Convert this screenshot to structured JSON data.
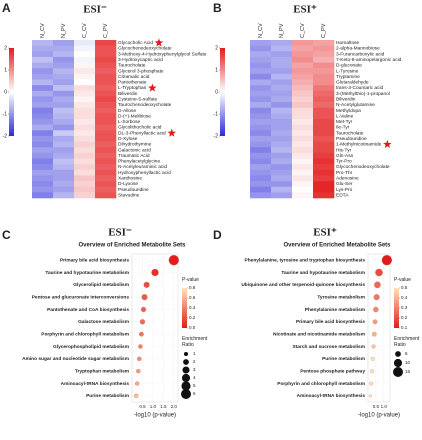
{
  "chart_data": [
    {
      "type": "heatmap",
      "panel_label": "A",
      "title": "ESI⁻",
      "columns": [
        "N_CV",
        "N_PV",
        "C_CV",
        "C_PV"
      ],
      "rows": [
        "Glycocholic Acid",
        "Glycochenodeoxycholate",
        "3-Methoxy-4-Hydroxyphenylglycol Sulfate",
        "3-Hydroxycapric acid",
        "Taurocholate",
        "Glycerol 3-phosphate",
        "Citramalic acid",
        "Pantothenate",
        "L-Tryptophan",
        "Biliverdin",
        "Cysteine-S-sulfate",
        "Taurochenodeoxycholate",
        "D-Allose",
        "D-(+)-Melibiose",
        "L-Sorbose",
        "Glycolithocholic acid",
        "DL-3-Phenyllactic acid",
        "D-Xylose",
        "Dihydrothymine",
        "Galactonic acid",
        "Traumatic Acid",
        "Phenylacetylglycine",
        "N-Acetyleuraminic acid",
        "Hydroxyphenyllactic acid",
        "Xanthosine",
        "D-Lyxose",
        "Pseudouridine",
        "Stavudine"
      ],
      "values": [
        [
          -0.7,
          -0.9,
          -0.2,
          1.6
        ],
        [
          -0.8,
          -0.8,
          -0.1,
          1.5
        ],
        [
          -0.9,
          -0.7,
          0.0,
          1.5
        ],
        [
          -0.6,
          -1.0,
          -0.1,
          1.6
        ],
        [
          -0.8,
          -0.9,
          0.1,
          1.5
        ],
        [
          -1.0,
          -0.7,
          0.2,
          1.4
        ],
        [
          -0.9,
          -0.8,
          0.1,
          1.5
        ],
        [
          -0.7,
          -0.9,
          0.0,
          1.5
        ],
        [
          -1.1,
          -0.6,
          0.3,
          1.4
        ],
        [
          -0.8,
          -1.0,
          0.2,
          1.5
        ],
        [
          -1.0,
          -0.8,
          0.1,
          1.6
        ],
        [
          -0.9,
          -0.9,
          0.2,
          1.5
        ],
        [
          -1.2,
          -0.6,
          0.3,
          1.4
        ],
        [
          -1.1,
          -0.7,
          0.3,
          1.5
        ],
        [
          -1.0,
          -0.8,
          0.2,
          1.5
        ],
        [
          -0.8,
          -1.0,
          0.3,
          1.4
        ],
        [
          -1.2,
          -0.5,
          0.2,
          1.5
        ],
        [
          -1.0,
          -0.8,
          0.3,
          1.5
        ],
        [
          -1.1,
          -0.7,
          0.4,
          1.4
        ],
        [
          -0.9,
          -0.9,
          0.3,
          1.5
        ],
        [
          -1.0,
          -0.8,
          0.4,
          1.4
        ],
        [
          -1.2,
          -0.6,
          0.3,
          1.5
        ],
        [
          -1.1,
          -0.7,
          0.4,
          1.4
        ],
        [
          -0.9,
          -0.9,
          0.3,
          1.5
        ],
        [
          -1.0,
          -0.9,
          0.5,
          1.4
        ],
        [
          -1.1,
          -0.8,
          0.4,
          1.5
        ],
        [
          -1.0,
          -0.9,
          0.5,
          1.4
        ],
        [
          -1.2,
          -0.7,
          0.4,
          1.5
        ]
      ],
      "clim": [
        -2,
        2
      ],
      "cticks": [
        2,
        1,
        0,
        -1,
        -2
      ],
      "colorscale": [
        "#2b2bd8",
        "#ffffff",
        "#e41a1c"
      ],
      "highlight_rows": [
        0,
        8,
        16
      ],
      "highlight_color": "#e41a1c"
    },
    {
      "type": "heatmap",
      "panel_label": "B",
      "title": "ESI⁺",
      "columns": [
        "N_CV",
        "N_PV",
        "C_CV",
        "C_PV"
      ],
      "rows": [
        "Isomaltose",
        "2-alpha-Mannobiose",
        "3-Furancarboxylic acid",
        "7-Keto-8-aminopelargonic acid",
        "D-gluconate",
        "L-Tyrosine",
        "Tryptamine",
        "Glutaraldehyde",
        "trans-3-Coumaric acid",
        "3-(Methylthio)-1-propanol",
        "Biliverdin",
        "N-Acetylglutamine",
        "Methyldopa",
        "L-Valine",
        "Met-Tyr",
        "Ile-Tyr",
        "Taurocholate",
        "Pseudouridine",
        "1-Methylnicotinamide",
        "His-Tyr",
        "Gln-Asn",
        "Tyr-Pro",
        "Glycochenodeoxycholate",
        "Pro-Thr",
        "Adenosine",
        "Glu-Ser",
        "Lys-Pro",
        "EDTA"
      ],
      "values": [
        [
          -0.9,
          -0.8,
          0.9,
          0.8
        ],
        [
          -1.0,
          -0.7,
          0.8,
          0.9
        ],
        [
          -0.8,
          -0.9,
          0.9,
          0.8
        ],
        [
          -0.9,
          -0.8,
          1.0,
          0.7
        ],
        [
          -1.0,
          -0.8,
          0.8,
          1.0
        ],
        [
          -0.9,
          -0.9,
          0.9,
          0.9
        ],
        [
          -1.1,
          -0.7,
          0.8,
          1.0
        ],
        [
          -0.8,
          -0.9,
          0.7,
          1.0
        ],
        [
          -1.0,
          -0.8,
          0.6,
          1.2
        ],
        [
          -0.9,
          -0.9,
          0.5,
          1.3
        ],
        [
          -1.0,
          -0.8,
          0.4,
          1.4
        ],
        [
          -0.8,
          -1.0,
          0.5,
          1.3
        ],
        [
          -1.1,
          -0.7,
          0.3,
          1.5
        ],
        [
          -1.0,
          -0.8,
          0.3,
          1.5
        ],
        [
          -0.9,
          -0.9,
          0.2,
          1.6
        ],
        [
          -1.0,
          -0.9,
          0.3,
          1.6
        ],
        [
          -1.1,
          -0.8,
          0.2,
          1.6
        ],
        [
          -0.9,
          -0.9,
          0.3,
          1.5
        ],
        [
          -1.0,
          -0.8,
          0.2,
          1.6
        ],
        [
          -1.2,
          -0.7,
          0.3,
          1.6
        ],
        [
          -1.0,
          -0.9,
          0.2,
          1.7
        ],
        [
          -1.1,
          -0.8,
          0.1,
          1.8
        ],
        [
          -0.9,
          -1.0,
          0.2,
          1.7
        ],
        [
          -1.0,
          -0.9,
          0.1,
          1.8
        ],
        [
          -1.1,
          -0.8,
          0.2,
          1.7
        ],
        [
          -1.0,
          -1.0,
          0.1,
          1.9
        ],
        [
          -1.2,
          -0.7,
          0.0,
          1.9
        ],
        [
          -1.0,
          -0.9,
          0.1,
          1.8
        ]
      ],
      "clim": [
        -2,
        2
      ],
      "cticks": [
        2,
        1,
        0,
        -1,
        -2
      ],
      "colorscale": [
        "#2b2bd8",
        "#ffffff",
        "#e41a1c"
      ],
      "highlight_rows": [
        18
      ],
      "highlight_color": "#e41a1c"
    },
    {
      "type": "dot",
      "panel_label": "C",
      "title": "ESI⁻",
      "subtitle": "Overview of Enriched Metabolite Sets",
      "categories": [
        "Primary bile acid biosynthesis",
        "Taurine and hypotaurine metabolism",
        "Glycerolipid metabolism",
        "Pentose and glucuronate interconversions",
        "Pantothenate and CoA biosynthesis",
        "Galactose metabolism",
        "Porphyrin and chlorophyll metabolism",
        "Glycerophospholipid metabolism",
        "Amino sugar and nucleotide sugar metabolism",
        "Tryptophan metabolism",
        "Aminoacyl-tRNA biosynthesis",
        "Purine metabolism"
      ],
      "values": [
        2.0,
        1.1,
        0.7,
        0.6,
        0.55,
        0.5,
        0.45,
        0.4,
        0.35,
        0.3,
        0.25,
        0.2
      ],
      "sizes": [
        6,
        3,
        2,
        2,
        1.5,
        1.5,
        1.2,
        1,
        1,
        1,
        1,
        1
      ],
      "xlim": [
        0,
        2.2
      ],
      "xticks": [
        0.5,
        {
          "value": 1,
          "label": "1.0"
        },
        1.5,
        {
          "value": 2,
          "label": "2.0"
        }
      ],
      "xlabel": "-log10 (p-value)",
      "grid": true,
      "color_title": "P-value",
      "clim": [
        0,
        0.8
      ],
      "cticks": [
        0.8,
        0.6,
        0.4,
        0.2,
        {
          "value": 0,
          "label": "0.0"
        }
      ],
      "colorscale": [
        "#e31a1c",
        "#fde3c0"
      ],
      "size_title": "Enrichment Ratio",
      "size_ticks": [
        1,
        2,
        3,
        4,
        5,
        6
      ]
    },
    {
      "type": "dot",
      "panel_label": "D",
      "title": "ESI⁺",
      "subtitle": "Overview of Enriched Metabolite Sets",
      "categories": [
        "Phenylalanine, tyrosine and tryptophan biosynthesis",
        "Taurine and hypotaurine metabolism",
        "Ubiquinone and other terpenoid-quinone biosynthesis",
        "Tyrosine metabolism",
        "Phenylalanine metabolism",
        "Primary bile acid biosynthesis",
        "Nicotinate and nicotinamide metabolism",
        "Starch and sucrose metabolism",
        "Purine metabolism",
        "Pentose phosphate pathway",
        "Porphyrin and chlorophyll metabolism",
        "Aminoacyl-tRNA biosynthesis"
      ],
      "values": [
        1.2,
        0.7,
        0.6,
        0.55,
        0.5,
        0.45,
        0.4,
        0.35,
        0.3,
        0.25,
        0.2,
        0.15
      ],
      "sizes": [
        15,
        8,
        6,
        5,
        4,
        3,
        3,
        2,
        2,
        2,
        2,
        1
      ],
      "xlim": [
        0,
        1.4
      ],
      "xticks": [
        0.5,
        {
          "value": 1,
          "label": "1.0"
        }
      ],
      "xlabel": "-log10 (p-value)",
      "grid": true,
      "color_title": "P-value",
      "clim": [
        0.1,
        0.5
      ],
      "cticks": [
        0.5,
        0.4,
        0.3,
        0.2,
        0.1
      ],
      "colorscale": [
        "#e31a1c",
        "#fde3c0"
      ],
      "size_title": "Enrichment Ratio",
      "size_ticks": [
        5,
        10,
        15
      ]
    }
  ]
}
